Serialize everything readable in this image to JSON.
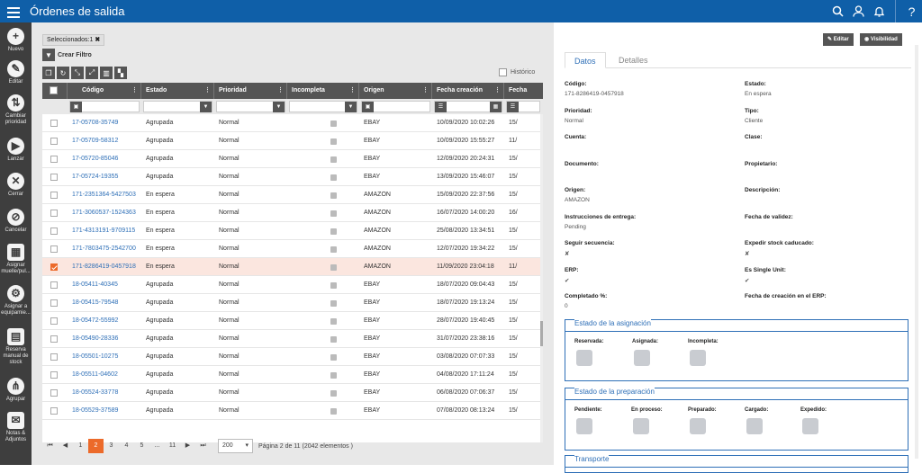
{
  "app": {
    "title": "Órdenes de salida"
  },
  "sidebar": {
    "items": [
      {
        "label": "Nuevo",
        "icon": "plus-icon"
      },
      {
        "label": "Editar",
        "icon": "pencil-icon"
      },
      {
        "label": "Cambiar prioridad",
        "icon": "priority-icon"
      },
      {
        "label": "Lanzar",
        "icon": "play-icon"
      },
      {
        "label": "Cerrar",
        "icon": "close-icon"
      },
      {
        "label": "Cancelar",
        "icon": "cancel-icon"
      },
      {
        "label": "Asignar muelle/pul...",
        "icon": "assign-dock-icon"
      },
      {
        "label": "Asignar a equipamie...",
        "icon": "assign-equipment-icon"
      },
      {
        "label": "Reserva manual de stock",
        "icon": "reserve-icon"
      },
      {
        "label": "Agrupar",
        "icon": "group-icon"
      },
      {
        "label": "Notas & Adjuntos",
        "icon": "notes-icon"
      }
    ]
  },
  "toolbar": {
    "selected_chip": "Seleccionados:1",
    "create_filter": "Crear Filtro",
    "historico": "Histórico"
  },
  "grid": {
    "columns": [
      "Código",
      "Estado",
      "Prioridad",
      "Incompleta",
      "Origen",
      "Fecha creación",
      "Fecha"
    ],
    "rows": [
      {
        "codigo": "17-05708-35749",
        "estado": "Agrupada",
        "prioridad": "Normal",
        "origen": "EBAY",
        "fecha": "10/09/2020 10:02:26",
        "fecha2": "15/",
        "selected": false
      },
      {
        "codigo": "17-05709-58312",
        "estado": "Agrupada",
        "prioridad": "Normal",
        "origen": "EBAY",
        "fecha": "10/09/2020 15:55:27",
        "fecha2": "11/",
        "selected": false
      },
      {
        "codigo": "17-05720-85046",
        "estado": "Agrupada",
        "prioridad": "Normal",
        "origen": "EBAY",
        "fecha": "12/09/2020 20:24:31",
        "fecha2": "15/",
        "selected": false
      },
      {
        "codigo": "17-05724-19355",
        "estado": "Agrupada",
        "prioridad": "Normal",
        "origen": "EBAY",
        "fecha": "13/09/2020 15:46:07",
        "fecha2": "15/",
        "selected": false
      },
      {
        "codigo": "171-2351364-5427503",
        "estado": "En espera",
        "prioridad": "Normal",
        "origen": "AMAZON",
        "fecha": "15/09/2020 22:37:56",
        "fecha2": "15/",
        "selected": false
      },
      {
        "codigo": "171-3060537-1524363",
        "estado": "En espera",
        "prioridad": "Normal",
        "origen": "AMAZON",
        "fecha": "16/07/2020 14:00:20",
        "fecha2": "16/",
        "selected": false
      },
      {
        "codigo": "171-4313191-9709115",
        "estado": "En espera",
        "prioridad": "Normal",
        "origen": "AMAZON",
        "fecha": "25/08/2020 13:34:51",
        "fecha2": "15/",
        "selected": false
      },
      {
        "codigo": "171-7803475-2542700",
        "estado": "En espera",
        "prioridad": "Normal",
        "origen": "AMAZON",
        "fecha": "12/07/2020 19:34:22",
        "fecha2": "15/",
        "selected": false
      },
      {
        "codigo": "171-8286419-0457918",
        "estado": "En espera",
        "prioridad": "Normal",
        "origen": "AMAZON",
        "fecha": "11/09/2020 23:04:18",
        "fecha2": "11/",
        "selected": true
      },
      {
        "codigo": "18-05411-40345",
        "estado": "Agrupada",
        "prioridad": "Normal",
        "origen": "EBAY",
        "fecha": "18/07/2020 09:04:43",
        "fecha2": "15/",
        "selected": false
      },
      {
        "codigo": "18-05415-79548",
        "estado": "Agrupada",
        "prioridad": "Normal",
        "origen": "EBAY",
        "fecha": "18/07/2020 19:13:24",
        "fecha2": "15/",
        "selected": false
      },
      {
        "codigo": "18-05472-55992",
        "estado": "Agrupada",
        "prioridad": "Normal",
        "origen": "EBAY",
        "fecha": "28/07/2020 19:40:45",
        "fecha2": "15/",
        "selected": false
      },
      {
        "codigo": "18-05490-28336",
        "estado": "Agrupada",
        "prioridad": "Normal",
        "origen": "EBAY",
        "fecha": "31/07/2020 23:38:16",
        "fecha2": "15/",
        "selected": false
      },
      {
        "codigo": "18-05501-10275",
        "estado": "Agrupada",
        "prioridad": "Normal",
        "origen": "EBAY",
        "fecha": "03/08/2020 07:07:33",
        "fecha2": "15/",
        "selected": false
      },
      {
        "codigo": "18-05511-04602",
        "estado": "Agrupada",
        "prioridad": "Normal",
        "origen": "EBAY",
        "fecha": "04/08/2020 17:11:24",
        "fecha2": "15/",
        "selected": false
      },
      {
        "codigo": "18-05524-33778",
        "estado": "Agrupada",
        "prioridad": "Normal",
        "origen": "EBAY",
        "fecha": "06/08/2020 07:06:37",
        "fecha2": "15/",
        "selected": false
      },
      {
        "codigo": "18-05529-37589",
        "estado": "Agrupada",
        "prioridad": "Normal",
        "origen": "EBAY",
        "fecha": "07/08/2020 08:13:24",
        "fecha2": "15/",
        "selected": false
      }
    ]
  },
  "pager": {
    "pages": [
      "1",
      "2",
      "3",
      "4",
      "5",
      "...",
      "11"
    ],
    "current": "2",
    "page_size": "200",
    "info": "Página 2 de 11 (2042 elementos )"
  },
  "detail": {
    "edit_btn": "Editar",
    "visibility_btn": "Visibilidad",
    "tabs": [
      "Datos",
      "Detalles"
    ],
    "fields": [
      {
        "label": "Código:",
        "value": "171-8286419-0457918"
      },
      {
        "label": "Estado:",
        "value": "En espera"
      },
      {
        "label": "Prioridad:",
        "value": "Normal"
      },
      {
        "label": "Tipo:",
        "value": "Cliente"
      },
      {
        "label": "Cuenta:",
        "value": ""
      },
      {
        "label": "Clase:",
        "value": ""
      },
      {
        "label": "Documento:",
        "value": ""
      },
      {
        "label": "Propietario:",
        "value": ""
      },
      {
        "label": "Origen:",
        "value": "AMAZON"
      },
      {
        "label": "Descripción:",
        "value": ""
      },
      {
        "label": "Instrucciones de entrega:",
        "value": "Pending"
      },
      {
        "label": "Fecha de validez:",
        "value": ""
      },
      {
        "label": "Seguir secuencia:",
        "value": "✘"
      },
      {
        "label": "Expedir stock caducado:",
        "value": "✘"
      },
      {
        "label": "ERP:",
        "value": "✔"
      },
      {
        "label": "Es Single Unit:",
        "value": "✔"
      },
      {
        "label": "Completado %:",
        "value": "0"
      },
      {
        "label": "Fecha de creación en el ERP:",
        "value": ""
      }
    ],
    "assign_box": {
      "title": "Estado de la asignación",
      "items": [
        "Reservada:",
        "Asignada:",
        "Incompleta:"
      ]
    },
    "prep_box": {
      "title": "Estado de la preparación",
      "items": [
        "Pendiente:",
        "En proceso:",
        "Preparado:",
        "Cargado:",
        "Expedido:"
      ]
    },
    "transport_box": {
      "title": "Transporte"
    }
  }
}
